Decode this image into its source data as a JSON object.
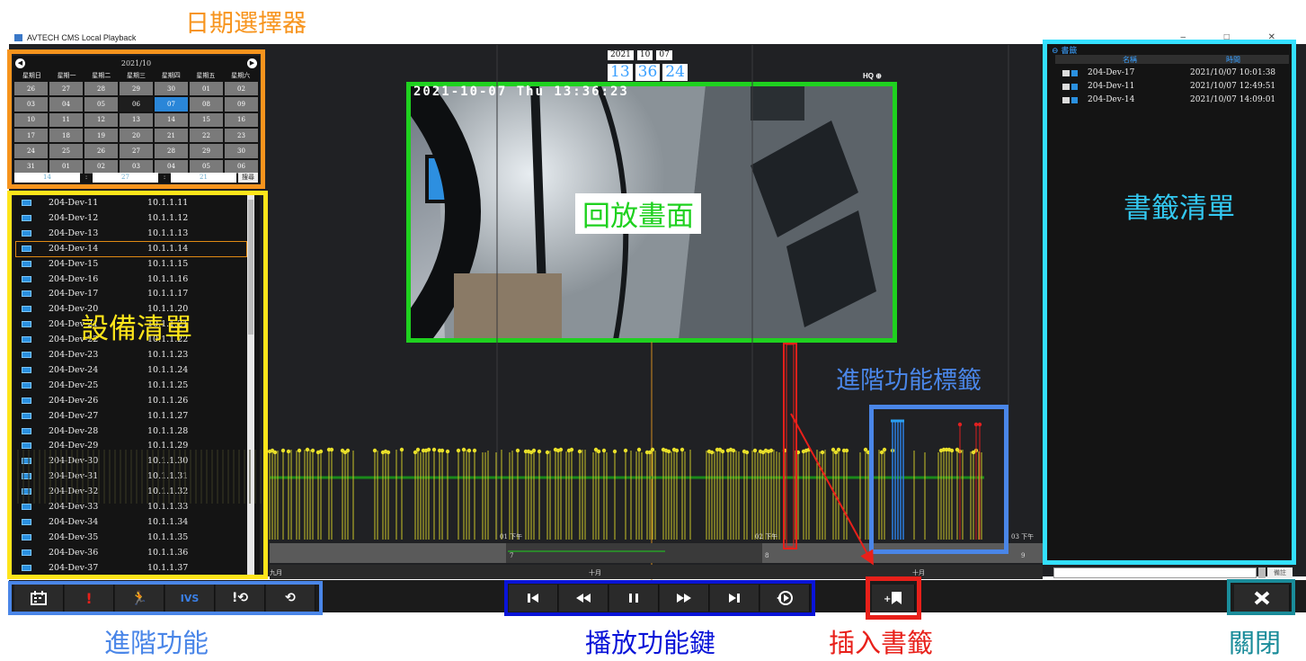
{
  "window": {
    "title": "AVTECH CMS Local Playback",
    "controls": "–  □  ✕"
  },
  "calendar": {
    "month_label": "2021/10",
    "weekdays": [
      "星期日",
      "星期一",
      "星期二",
      "星期三",
      "星期四",
      "星期五",
      "星期六"
    ],
    "days": [
      "26",
      "27",
      "28",
      "29",
      "30",
      "01",
      "02",
      "03",
      "04",
      "05",
      "06",
      "07",
      "08",
      "09",
      "10",
      "11",
      "12",
      "13",
      "14",
      "15",
      "16",
      "17",
      "18",
      "19",
      "20",
      "21",
      "22",
      "23",
      "24",
      "25",
      "26",
      "27",
      "28",
      "29",
      "30",
      "31",
      "01",
      "02",
      "03",
      "04",
      "05",
      "06"
    ],
    "today_day": "06",
    "selected_day": "07",
    "time_hour": "14",
    "time_min": "27",
    "time_sec": "21",
    "time_sep": ":",
    "search_label": "搜尋"
  },
  "devices": [
    {
      "name": "204-Dev-11",
      "ip": "10.1.1.11"
    },
    {
      "name": "204-Dev-12",
      "ip": "10.1.1.12"
    },
    {
      "name": "204-Dev-13",
      "ip": "10.1.1.13"
    },
    {
      "name": "204-Dev-14",
      "ip": "10.1.1.14",
      "selected": true
    },
    {
      "name": "204-Dev-15",
      "ip": "10.1.1.15"
    },
    {
      "name": "204-Dev-16",
      "ip": "10.1.1.16"
    },
    {
      "name": "204-Dev-17",
      "ip": "10.1.1.17"
    },
    {
      "name": "204-Dev-20",
      "ip": "10.1.1.20"
    },
    {
      "name": "204-Dev-21",
      "ip": "10.1.1.21"
    },
    {
      "name": "204-Dev-22",
      "ip": "10.1.1.22"
    },
    {
      "name": "204-Dev-23",
      "ip": "10.1.1.23"
    },
    {
      "name": "204-Dev-24",
      "ip": "10.1.1.24"
    },
    {
      "name": "204-Dev-25",
      "ip": "10.1.1.25"
    },
    {
      "name": "204-Dev-26",
      "ip": "10.1.1.26"
    },
    {
      "name": "204-Dev-27",
      "ip": "10.1.1.27"
    },
    {
      "name": "204-Dev-28",
      "ip": "10.1.1.28"
    },
    {
      "name": "204-Dev-29",
      "ip": "10.1.1.29"
    },
    {
      "name": "204-Dev-30",
      "ip": "10.1.1.30"
    },
    {
      "name": "204-Dev-31",
      "ip": "10.1.1.31"
    },
    {
      "name": "204-Dev-32",
      "ip": "10.1.1.32"
    },
    {
      "name": "204-Dev-33",
      "ip": "10.1.1.33"
    },
    {
      "name": "204-Dev-34",
      "ip": "10.1.1.34"
    },
    {
      "name": "204-Dev-35",
      "ip": "10.1.1.35"
    },
    {
      "name": "204-Dev-36",
      "ip": "10.1.1.36"
    },
    {
      "name": "204-Dev-37",
      "ip": "10.1.1.37"
    }
  ],
  "bookmarks": {
    "title": "書籤",
    "col_name": "名稱",
    "col_time": "時間",
    "items": [
      {
        "name": "204-Dev-17",
        "time": "2021/10/07 10:01:38"
      },
      {
        "name": "204-Dev-11",
        "time": "2021/10/07 12:49:51"
      },
      {
        "name": "204-Dev-14",
        "time": "2021/10/07 14:09:01"
      }
    ],
    "remark_label": "備註"
  },
  "playback": {
    "date_year": "2021",
    "date_month": "10",
    "date_day": "07",
    "time_h": "13",
    "time_m": "36",
    "time_s": "24",
    "time_sep": ":",
    "hq_label": "HQ",
    "osd_text": "2021-10-07 Thu 13:36:23"
  },
  "timeline": {
    "hour_labels": [
      "01 下午",
      "02 下午",
      "03 下午"
    ],
    "day_labels": [
      "7",
      "8",
      "9"
    ],
    "month_labels": [
      "九月",
      "十月",
      "十月"
    ]
  },
  "controls": {
    "ivs_label": "IVS"
  },
  "annotations": {
    "date_picker": "日期選擇器",
    "playback_screen": "回放畫面",
    "bookmark_list": "書籤清單",
    "device_list": "設備清單",
    "advanced_tags": "進階功能標籤",
    "advanced_functions": "進階功能",
    "playback_keys": "播放功能鍵",
    "insert_bookmark": "插入書籤",
    "close": "關閉"
  },
  "colors": {
    "date_picker": "#f7941d",
    "device_list": "#ffe51a",
    "playback_screen": "#1fd11f",
    "bookmark_list": "#33e0ff",
    "advanced": "#4a86e8",
    "playback_keys": "#0a14d8",
    "insert_bookmark": "#e8201a",
    "close": "#1a8c9a"
  }
}
